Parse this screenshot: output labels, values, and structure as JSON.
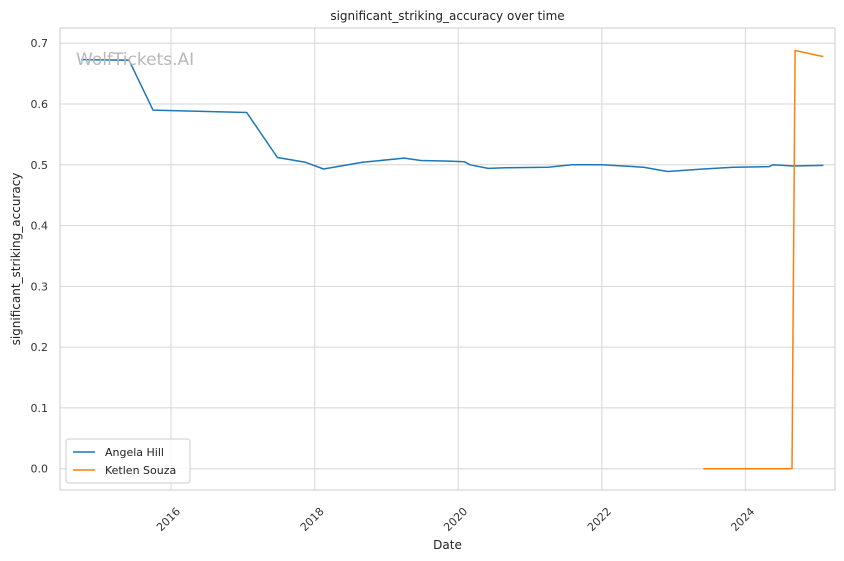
{
  "chart_data": {
    "type": "line",
    "title": "significant_striking_accuracy over time",
    "xlabel": "Date",
    "ylabel": "significant_striking_accuracy",
    "watermark": "WolfTickets.AI",
    "xlim": [
      "2014-06-15",
      "2025-04-01"
    ],
    "ylim": [
      -0.035,
      0.725
    ],
    "x_ticks": [
      "2016",
      "2018",
      "2020",
      "2022",
      "2024"
    ],
    "y_ticks": [
      "0.0",
      "0.1",
      "0.2",
      "0.3",
      "0.4",
      "0.5",
      "0.6",
      "0.7"
    ],
    "grid": true,
    "legend_position": "lower-left",
    "series": [
      {
        "name": "Angela Hill",
        "color": "#1f77b4",
        "x": [
          "2014-10-01",
          "2015-06-01",
          "2015-10-01",
          "2017-01-20",
          "2017-06-25",
          "2017-11-15",
          "2018-02-15",
          "2018-09-01",
          "2019-04-01",
          "2019-06-25",
          "2019-11-15",
          "2020-02-01",
          "2020-03-01",
          "2020-06-01",
          "2020-09-01",
          "2021-04-01",
          "2021-08-01",
          "2022-01-01",
          "2022-08-01",
          "2022-12-01",
          "2023-06-01",
          "2023-11-01",
          "2024-05-01",
          "2024-05-20",
          "2024-09-01",
          "2025-02-01"
        ],
        "y": [
          0.673,
          0.672,
          0.59,
          0.586,
          0.512,
          0.504,
          0.493,
          0.504,
          0.511,
          0.507,
          0.506,
          0.505,
          0.5,
          0.494,
          0.495,
          0.496,
          0.5,
          0.5,
          0.496,
          0.489,
          0.493,
          0.496,
          0.497,
          0.5,
          0.498,
          0.499
        ]
      },
      {
        "name": "Ketlen Souza",
        "color": "#ff7f0e",
        "x": [
          "2023-06-01",
          "2024-08-25",
          "2024-09-10",
          "2025-02-01"
        ],
        "y": [
          0.0,
          0.0,
          0.688,
          0.678
        ]
      }
    ]
  }
}
